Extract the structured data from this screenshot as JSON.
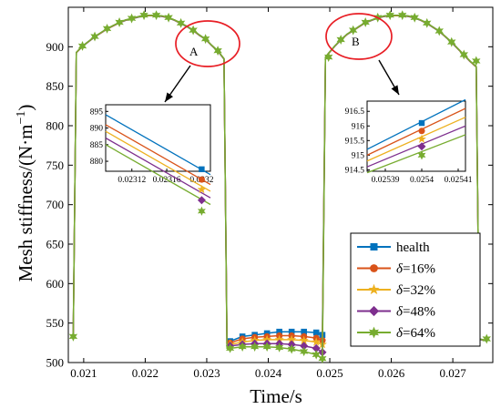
{
  "chart_data": {
    "type": "line",
    "xlabel": "Time/s",
    "ylabel": "Mesh stiffness/(N·m",
    "ylabel_sup": "−1",
    "ylabel_close": ")",
    "xlim": [
      0.02075,
      0.02765
    ],
    "ylim": [
      500,
      950
    ],
    "xticks": [
      0.021,
      0.022,
      0.023,
      0.024,
      0.025,
      0.026,
      0.027
    ],
    "xtick_labels": [
      "0.021",
      "0.022",
      "0.023",
      "0.024",
      "0.025",
      "0.026",
      "0.027"
    ],
    "yticks": [
      500,
      550,
      600,
      650,
      700,
      750,
      800,
      850,
      900
    ],
    "ytick_labels": [
      "500",
      "550",
      "600",
      "650",
      "700",
      "750",
      "800",
      "850",
      "900"
    ],
    "legend_position": "lower-right",
    "series": [
      {
        "name": "health",
        "prefix": "",
        "color": "#0072BD",
        "marker": "square",
        "low_values": [
          527,
          533,
          535,
          537,
          539,
          539,
          539,
          538,
          535
        ]
      },
      {
        "name": "=16%",
        "prefix": "δ",
        "color": "#D95319",
        "marker": "circle",
        "low_values": [
          525,
          530,
          532,
          533,
          534,
          534,
          533,
          531,
          528
        ]
      },
      {
        "name": "=32%",
        "prefix": "δ",
        "color": "#EDB120",
        "marker": "star",
        "low_values": [
          523,
          526,
          528,
          529,
          529,
          529,
          528,
          526,
          523
        ]
      },
      {
        "name": "=48%",
        "prefix": "δ",
        "color": "#7E2F8E",
        "marker": "diamond",
        "low_values": [
          521,
          523,
          524,
          524,
          524,
          523,
          521,
          518,
          513
        ]
      },
      {
        "name": "=64%",
        "prefix": "δ",
        "color": "#77AC30",
        "marker": "hexagram",
        "low_values": [
          518,
          520,
          520,
          520,
          519,
          517,
          514,
          510,
          505
        ]
      }
    ],
    "high_segments": [
      {
        "x": [
          0.02083,
          0.02088,
          0.02098,
          0.02108,
          0.02118,
          0.02128,
          0.02138,
          0.02148,
          0.02158,
          0.02168,
          0.02178,
          0.02188,
          0.02198,
          0.02208,
          0.02218,
          0.02228,
          0.02238,
          0.02248,
          0.02258,
          0.02268,
          0.02278,
          0.02288,
          0.02298,
          0.02308,
          0.02318,
          0.02328
        ],
        "y": [
          533,
          893,
          901,
          907,
          913,
          918,
          923,
          927,
          931,
          934,
          936,
          938,
          940,
          940,
          940,
          939,
          937,
          934,
          930,
          926,
          921,
          915,
          910,
          902,
          895,
          885
        ],
        "marker_x": [
          0.02083,
          0.02098,
          0.02118,
          0.02138,
          0.02158,
          0.02178,
          0.02198,
          0.02218,
          0.02238,
          0.02258,
          0.02278,
          0.02298,
          0.02318
        ],
        "marker_y": [
          533,
          901,
          913,
          923,
          931,
          936,
          940,
          940,
          937,
          930,
          921,
          910,
          895
        ]
      },
      {
        "x": [
          0.02493,
          0.02498,
          0.02508,
          0.02518,
          0.02528,
          0.02538,
          0.02548,
          0.02558,
          0.02568,
          0.02578,
          0.02588,
          0.02598,
          0.02608,
          0.02618,
          0.02628,
          0.02638,
          0.02648,
          0.02658,
          0.02668,
          0.02678,
          0.02688,
          0.02698,
          0.02708,
          0.02718,
          0.02728,
          0.02738,
          0.02743,
          0.02755
        ],
        "y": [
          887,
          892,
          901,
          909,
          916,
          921,
          926,
          931,
          934,
          937,
          939,
          940,
          940,
          940,
          939,
          937,
          934,
          930,
          925,
          920,
          913,
          906,
          898,
          890,
          882,
          875,
          530,
          528
        ],
        "marker_x": [
          0.02498,
          0.02518,
          0.02538,
          0.02558,
          0.02578,
          0.02598,
          0.02618,
          0.02638,
          0.02658,
          0.02678,
          0.02698,
          0.02718,
          0.02738,
          0.02755
        ],
        "marker_y": [
          887,
          909,
          921,
          931,
          937,
          940,
          940,
          937,
          930,
          920,
          906,
          890,
          882,
          530
        ]
      }
    ],
    "low_x": [
      0.02338,
      0.02358,
      0.02378,
      0.02398,
      0.02418,
      0.02438,
      0.02458,
      0.02478,
      0.02488
    ],
    "annotations": [
      {
        "label": "A"
      },
      {
        "label": "B"
      }
    ],
    "insets": [
      {
        "label": "A",
        "xlim": [
          0.02309,
          0.02321
        ],
        "ylim": [
          877,
          897
        ],
        "xticks": [
          0.02312,
          0.02316,
          0.0232
        ],
        "xtick_labels": [
          "0.02312",
          "0.02316",
          "0.0232"
        ],
        "yticks": [
          880,
          885,
          890,
          895
        ],
        "ytick_labels": [
          "880",
          "885",
          "890",
          "895"
        ],
        "line_start": [
          894,
          891,
          889,
          887,
          885
        ],
        "line_end": [
          876,
          873,
          871,
          869,
          867
        ],
        "marker_x": 0.0232,
        "marker_y": [
          877.6,
          874.5,
          871.5,
          868.3,
          865
        ]
      },
      {
        "label": "B",
        "xlim": [
          0.025385,
          0.025412
        ],
        "ylim": [
          914.45,
          916.85
        ],
        "xticks": [
          0.02539,
          0.0254,
          0.02541
        ],
        "xtick_labels": [
          "0.02539",
          "0.0254",
          "0.02541"
        ],
        "yticks": [
          914.5,
          915,
          915.5,
          916,
          916.5
        ],
        "ytick_labels": [
          "914.5",
          "915",
          "915.5",
          "916",
          "916.5"
        ],
        "line_start": [
          915.2,
          915.0,
          914.8,
          914.6,
          914.4
        ],
        "line_end": [
          916.9,
          916.6,
          916.3,
          916.0,
          915.7
        ],
        "marker_x": 0.0254,
        "marker_y": [
          916.1,
          915.83,
          915.55,
          915.3,
          915.0
        ]
      }
    ]
  }
}
